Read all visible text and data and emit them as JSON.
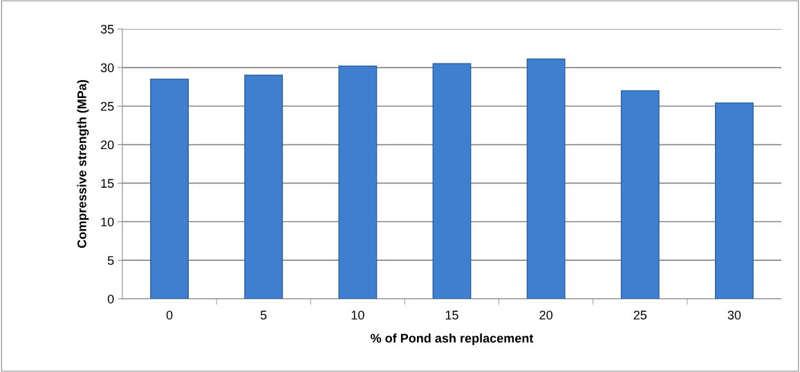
{
  "chart_data": {
    "type": "bar",
    "xlabel": "% of Pond ash replacement",
    "ylabel": "Compressive strength (MPa)",
    "categories": [
      "0",
      "5",
      "10",
      "15",
      "20",
      "25",
      "30"
    ],
    "values": [
      28.5,
      29.0,
      30.2,
      30.5,
      31.1,
      27.0,
      25.4
    ],
    "color": "#3f7fd0",
    "ylim": [
      0,
      35
    ],
    "yticks": [
      0,
      5,
      10,
      15,
      20,
      25,
      30,
      35
    ],
    "grid": "y"
  }
}
